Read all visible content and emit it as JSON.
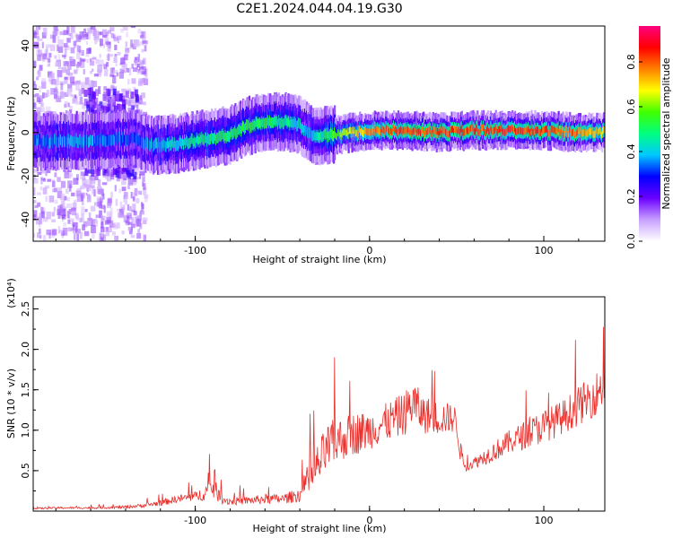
{
  "title": "C2E1.2024.044.04.19.G30",
  "chart_data": [
    {
      "type": "heatmap",
      "xlabel": "Height of straight line (km)",
      "ylabel": "Frequency (Hz)",
      "xlim": [
        -193,
        135
      ],
      "ylim": [
        -50,
        49
      ],
      "x_ticks": [
        -100,
        0,
        100
      ],
      "x_tick_labels": [
        "-100",
        "0",
        "100"
      ],
      "y_ticks": [
        -40,
        -20,
        0,
        20,
        40
      ],
      "y_tick_labels": [
        "-40",
        "-20",
        "0",
        "20",
        "40"
      ],
      "colorbar": {
        "label": "Normalized spectral amplitude",
        "range": [
          0,
          0.96
        ],
        "ticks": [
          0.0,
          0.2,
          0.4,
          0.6,
          0.8
        ],
        "tick_labels": [
          "0.0",
          "0.2",
          "0.4",
          "0.6",
          "0.8"
        ],
        "colors": [
          "#ffffff",
          "#c8a0ff",
          "#6a00ff",
          "#0000ff",
          "#00c8ff",
          "#00ff80",
          "#40ff00",
          "#ffff00",
          "#ff8000",
          "#ff0000",
          "#ff0080"
        ]
      },
      "ridge": {
        "x": [
          -193,
          -170,
          -150,
          -135,
          -125,
          -110,
          -95,
          -80,
          -70,
          -60,
          -50,
          -42,
          -35,
          -30,
          -25,
          -20,
          -10,
          0,
          20,
          40,
          60,
          80,
          100,
          120,
          135
        ],
        "freq_hz": [
          -4,
          -4,
          -3,
          -3,
          -6,
          -5,
          -3,
          -1,
          3,
          5,
          5,
          4,
          0,
          -2,
          -1,
          -1,
          0,
          1,
          1,
          0,
          1,
          1,
          1,
          0,
          0
        ],
        "peak_amplitude": [
          0.35,
          0.4,
          0.35,
          0.3,
          0.4,
          0.45,
          0.5,
          0.5,
          0.55,
          0.55,
          0.5,
          0.45,
          0.4,
          0.45,
          0.55,
          0.6,
          0.7,
          0.8,
          0.85,
          0.85,
          0.85,
          0.85,
          0.85,
          0.8,
          0.75
        ]
      },
      "grid": false
    },
    {
      "type": "line",
      "xlabel": "Height of straight line (km)",
      "ylabel": "SNR (10 * v/v)",
      "y_multiplier_label": "(x10⁴)",
      "xlim": [
        -193,
        135
      ],
      "ylim": [
        0,
        2.65
      ],
      "x_ticks": [
        -100,
        0,
        100
      ],
      "x_tick_labels": [
        "-100",
        "0",
        "100"
      ],
      "y_ticks": [
        0.5,
        1.0,
        1.5,
        2.0,
        2.5
      ],
      "y_tick_labels": [
        "0.5",
        "1.0",
        "1.5",
        "2.0",
        "2.5"
      ],
      "series": [
        {
          "color": "#e8302c",
          "x": [
            -193,
            -180,
            -160,
            -140,
            -130,
            -120,
            -110,
            -100,
            -95,
            -90,
            -85,
            -80,
            -70,
            -60,
            -50,
            -40,
            -35,
            -30,
            -25,
            -20,
            -15,
            -10,
            0,
            10,
            20,
            25,
            30,
            40,
            48,
            50,
            52,
            55,
            60,
            70,
            80,
            90,
            100,
            110,
            120,
            130,
            135
          ],
          "values": [
            0.03,
            0.04,
            0.04,
            0.05,
            0.07,
            0.1,
            0.15,
            0.18,
            0.22,
            0.3,
            0.15,
            0.12,
            0.13,
            0.15,
            0.15,
            0.2,
            0.35,
            0.55,
            0.75,
            0.85,
            0.9,
            0.95,
            1.0,
            1.1,
            1.2,
            1.35,
            1.2,
            1.15,
            1.15,
            1.1,
            0.75,
            0.55,
            0.6,
            0.72,
            0.85,
            0.95,
            1.05,
            1.15,
            1.3,
            1.45,
            1.6
          ],
          "noise_amplitude": [
            0.02,
            0.02,
            0.02,
            0.03,
            0.04,
            0.06,
            0.08,
            0.1,
            0.15,
            0.25,
            0.1,
            0.08,
            0.08,
            0.1,
            0.1,
            0.15,
            0.3,
            0.45,
            0.5,
            0.5,
            0.45,
            0.45,
            0.4,
            0.4,
            0.45,
            0.5,
            0.4,
            0.35,
            0.3,
            0.3,
            0.2,
            0.1,
            0.12,
            0.2,
            0.25,
            0.3,
            0.35,
            0.35,
            0.4,
            0.45,
            0.5
          ]
        }
      ],
      "grid": false
    }
  ]
}
